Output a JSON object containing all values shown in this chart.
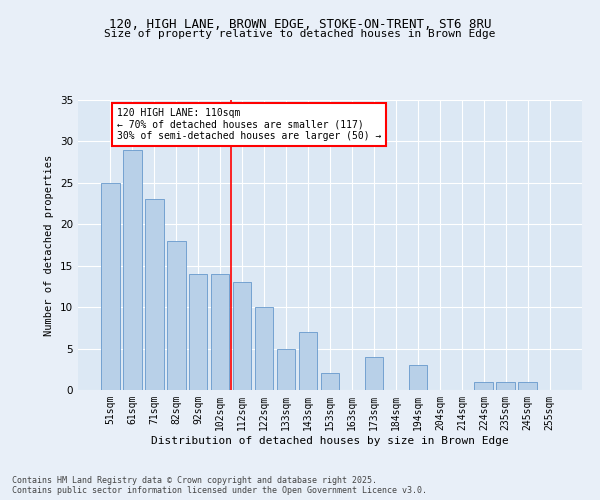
{
  "title1": "120, HIGH LANE, BROWN EDGE, STOKE-ON-TRENT, ST6 8RU",
  "title2": "Size of property relative to detached houses in Brown Edge",
  "xlabel": "Distribution of detached houses by size in Brown Edge",
  "ylabel": "Number of detached properties",
  "categories": [
    "51sqm",
    "61sqm",
    "71sqm",
    "82sqm",
    "92sqm",
    "102sqm",
    "112sqm",
    "122sqm",
    "133sqm",
    "143sqm",
    "153sqm",
    "163sqm",
    "173sqm",
    "184sqm",
    "194sqm",
    "204sqm",
    "214sqm",
    "224sqm",
    "235sqm",
    "245sqm",
    "255sqm"
  ],
  "values": [
    25,
    29,
    23,
    18,
    14,
    14,
    13,
    10,
    5,
    7,
    2,
    0,
    4,
    0,
    3,
    0,
    0,
    1,
    1,
    1,
    0
  ],
  "bar_color": "#b8d0e8",
  "bar_edge_color": "#6699cc",
  "red_line_index": 6,
  "annotation_title": "120 HIGH LANE: 110sqm",
  "annotation_line1": "← 70% of detached houses are smaller (117)",
  "annotation_line2": "30% of semi-detached houses are larger (50) →",
  "ylim": [
    0,
    35
  ],
  "yticks": [
    0,
    5,
    10,
    15,
    20,
    25,
    30,
    35
  ],
  "bg_color": "#e8eff8",
  "plot_bg_color": "#dce8f4",
  "footer1": "Contains HM Land Registry data © Crown copyright and database right 2025.",
  "footer2": "Contains public sector information licensed under the Open Government Licence v3.0."
}
